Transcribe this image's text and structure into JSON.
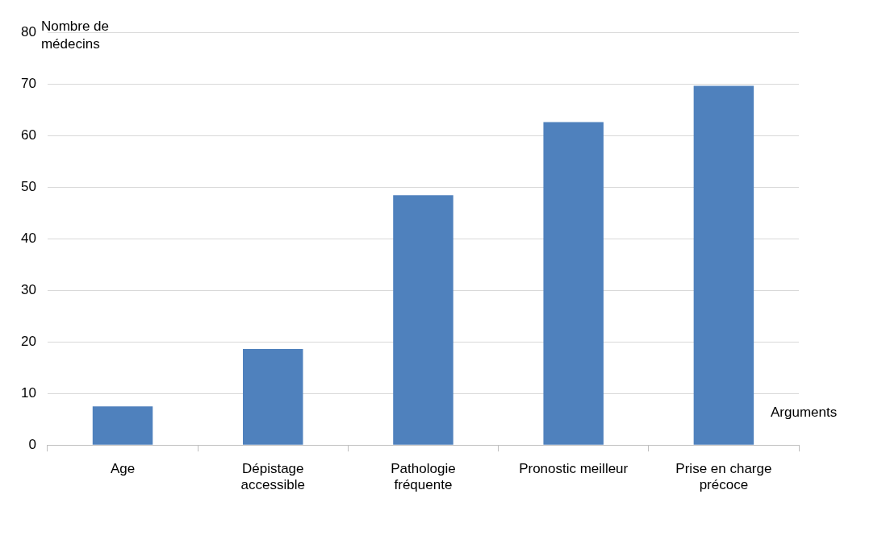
{
  "chart_data": {
    "type": "bar",
    "xlabel": "Arguments",
    "ylabel": "Nombre de médecins",
    "categories": [
      "Age",
      "Dépistage accessible",
      "Pathologie fréquente",
      "Pronostic meilleur",
      "Prise en charge précoce"
    ],
    "values": [
      7.5,
      18.6,
      48.4,
      62.6,
      69.6
    ],
    "color": "#4f81bd",
    "ylim": [
      0,
      80
    ],
    "yticks": [
      0,
      10,
      20,
      30,
      40,
      50,
      60,
      70,
      80
    ],
    "grid": "y",
    "legend": false
  }
}
